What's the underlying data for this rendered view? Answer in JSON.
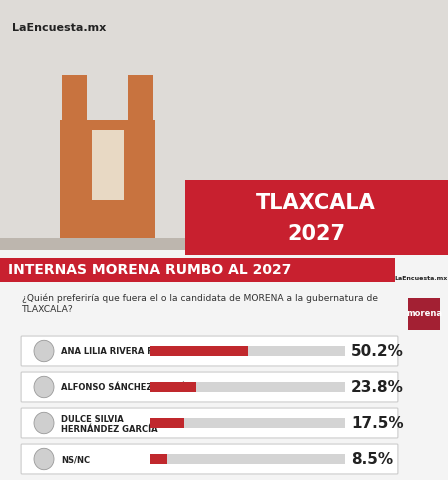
{
  "chart_data": {
    "type": "bar",
    "orientation": "horizontal",
    "title": "INTERNAS MORENA RUMBO AL 2027",
    "subtitle": "¿Quién preferiría que fuera el o la candidata de MORENA a la gubernatura de\nTLAXCALA?",
    "annotations": [
      "LaEncuesta.mx",
      "TLAXCALA",
      "2027",
      "morena"
    ],
    "categories": [
      "ANA LILIA RIVERA RIVERA",
      "ALFONSO SÁNCHEZ GARCÍA",
      "DULCE SILVIA\nHERNÁNDEZ GARCÍA",
      "NS/NC"
    ],
    "values": [
      50.2,
      23.8,
      17.5,
      8.5
    ],
    "value_labels": [
      "50.2%",
      "23.8%",
      "17.5%",
      "8.5%"
    ],
    "color": "#c0282d",
    "xlim": [
      0,
      100
    ],
    "data_labels": true,
    "tick_labels": "y",
    "grid": false
  }
}
